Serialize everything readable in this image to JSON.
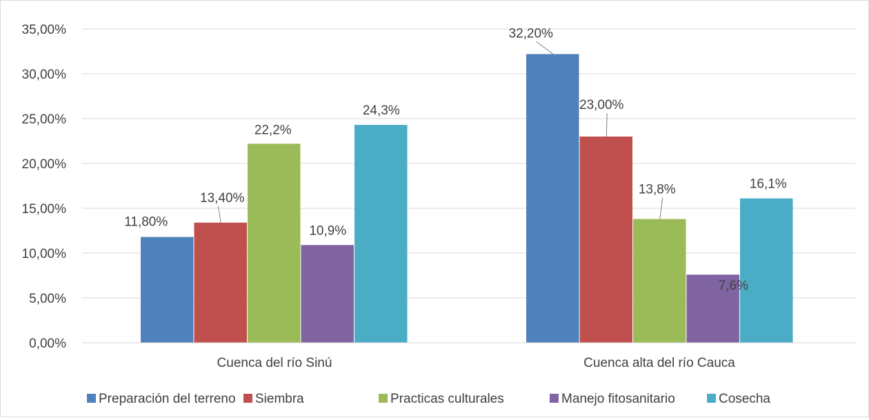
{
  "chart_data": {
    "type": "bar",
    "categories": [
      "Cuenca del río Sinú",
      "Cuenca alta del río Cauca"
    ],
    "series": [
      {
        "name": "Preparación del terreno",
        "color": "#4f81bd",
        "values": [
          11.8,
          32.2
        ],
        "labels": [
          "11,80%",
          "32,20%"
        ]
      },
      {
        "name": "Siembra",
        "color": "#c0504d",
        "values": [
          13.4,
          23.0
        ],
        "labels": [
          "13,40%",
          "23,00%"
        ]
      },
      {
        "name": "Practicas culturales",
        "color": "#9bbb59",
        "values": [
          22.2,
          13.8
        ],
        "labels": [
          "22,2%",
          "13,8%"
        ]
      },
      {
        "name": "Manejo fitosanitario",
        "color": "#8064a2",
        "values": [
          10.9,
          7.6
        ],
        "labels": [
          "10,9%",
          "7,6%"
        ]
      },
      {
        "name": "Cosecha",
        "color": "#4bacc6",
        "values": [
          24.3,
          16.1
        ],
        "labels": [
          "24,3%",
          "16,1%"
        ]
      }
    ],
    "yticks": [
      "0,00%",
      "5,00%",
      "10,00%",
      "15,00%",
      "20,00%",
      "25,00%",
      "30,00%",
      "35,00%"
    ],
    "ylim": [
      0,
      35
    ],
    "grid": true,
    "legend": "bottom",
    "title": "",
    "xlabel": "",
    "ylabel": ""
  }
}
